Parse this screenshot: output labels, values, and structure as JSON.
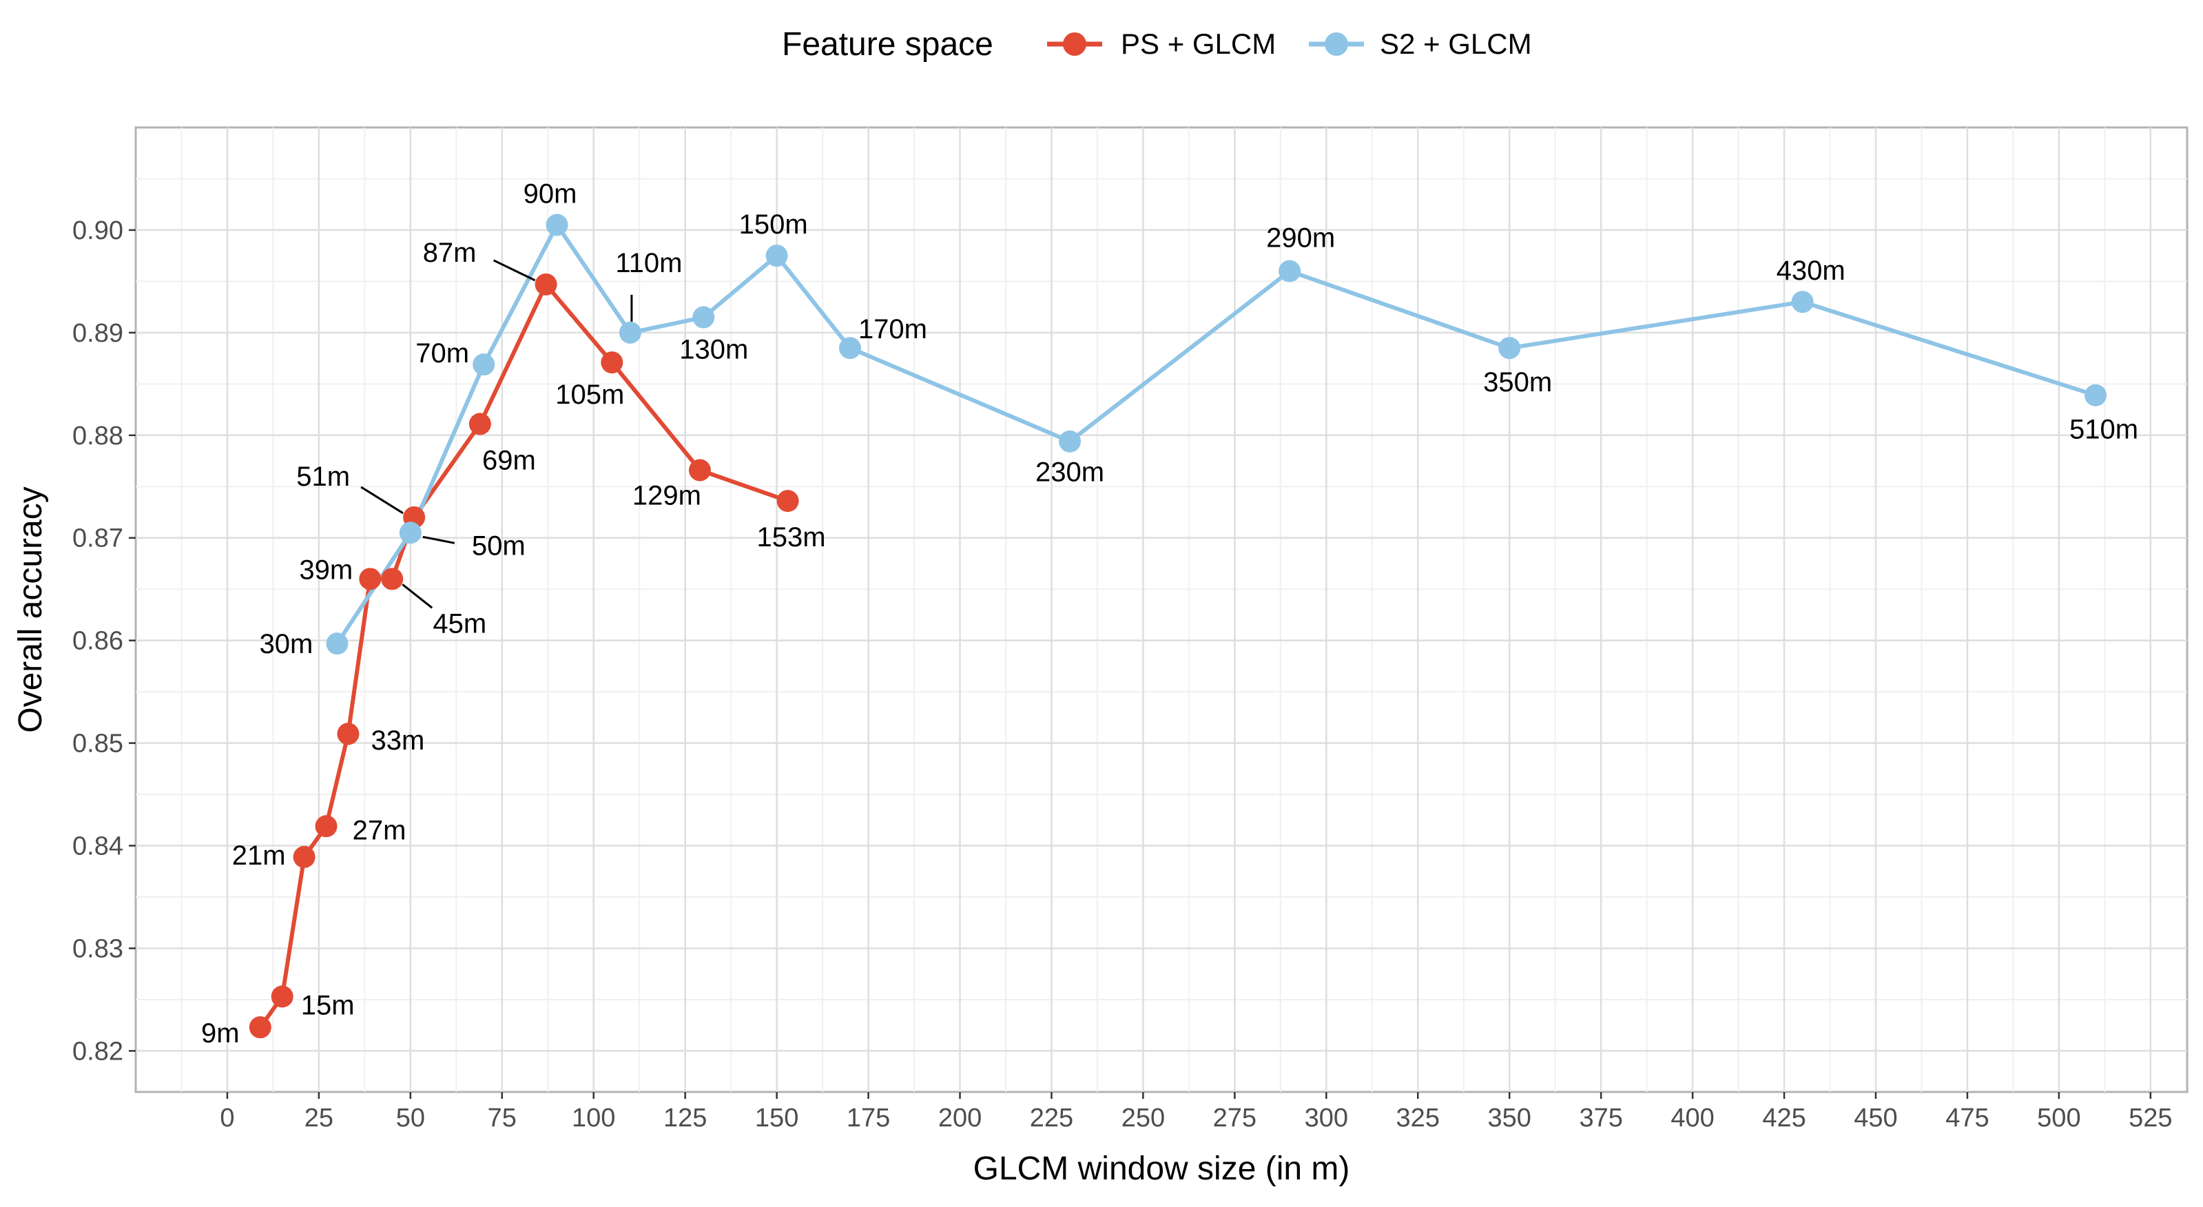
{
  "chart_data": {
    "type": "line",
    "xlabel": "GLCM window size (in m)",
    "ylabel": "Overall accuracy",
    "xlim": [
      -25,
      535
    ],
    "ylim": [
      0.816,
      0.91
    ],
    "x_ticks": [
      0,
      25,
      50,
      75,
      100,
      125,
      150,
      175,
      200,
      225,
      250,
      275,
      300,
      325,
      350,
      375,
      400,
      425,
      450,
      475,
      500,
      525
    ],
    "x_tick_labels": [
      "0",
      "25",
      "50",
      "75",
      "100",
      "125",
      "150",
      "175",
      "200",
      "225",
      "250",
      "275",
      "300",
      "325",
      "350",
      "375",
      "400",
      "425",
      "450",
      "475",
      "500",
      "525"
    ],
    "y_ticks": [
      0.82,
      0.83,
      0.84,
      0.85,
      0.86,
      0.87,
      0.88,
      0.89,
      0.9
    ],
    "y_tick_labels": [
      "0.82",
      "0.83",
      "0.84",
      "0.85",
      "0.86",
      "0.87",
      "0.88",
      "0.89",
      "0.90"
    ],
    "legend": {
      "title": "Feature space",
      "position": "top"
    },
    "series": [
      {
        "name": "PS + GLCM",
        "color": "#E24A33",
        "points": [
          {
            "x": 9,
            "y": 0.8223,
            "label": "9m"
          },
          {
            "x": 15,
            "y": 0.8253,
            "label": "15m"
          },
          {
            "x": 21,
            "y": 0.8389,
            "label": "21m"
          },
          {
            "x": 27,
            "y": 0.8419,
            "label": "27m"
          },
          {
            "x": 33,
            "y": 0.8509,
            "label": "33m"
          },
          {
            "x": 39,
            "y": 0.866,
            "label": "39m"
          },
          {
            "x": 45,
            "y": 0.866,
            "label": "45m"
          },
          {
            "x": 51,
            "y": 0.872,
            "label": "51m"
          },
          {
            "x": 69,
            "y": 0.8811,
            "label": "69m"
          },
          {
            "x": 87,
            "y": 0.8947,
            "label": "87m"
          },
          {
            "x": 105,
            "y": 0.8871,
            "label": "105m"
          },
          {
            "x": 129,
            "y": 0.8766,
            "label": "129m"
          },
          {
            "x": 153,
            "y": 0.8736,
            "label": "153m"
          }
        ]
      },
      {
        "name": "S2 + GLCM",
        "color": "#8EC4E6",
        "points": [
          {
            "x": 30,
            "y": 0.8597,
            "label": "30m"
          },
          {
            "x": 50,
            "y": 0.8705,
            "label": "50m"
          },
          {
            "x": 70,
            "y": 0.8869,
            "label": "70m"
          },
          {
            "x": 90,
            "y": 0.9005,
            "label": "90m"
          },
          {
            "x": 110,
            "y": 0.89,
            "label": "110m"
          },
          {
            "x": 130,
            "y": 0.8915,
            "label": "130m"
          },
          {
            "x": 150,
            "y": 0.8975,
            "label": "150m"
          },
          {
            "x": 170,
            "y": 0.8885,
            "label": "170m"
          },
          {
            "x": 230,
            "y": 0.8794,
            "label": "230m"
          },
          {
            "x": 290,
            "y": 0.896,
            "label": "290m"
          },
          {
            "x": 350,
            "y": 0.8885,
            "label": "350m"
          },
          {
            "x": 430,
            "y": 0.893,
            "label": "430m"
          },
          {
            "x": 510,
            "y": 0.8839,
            "label": "510m"
          }
        ]
      }
    ]
  }
}
